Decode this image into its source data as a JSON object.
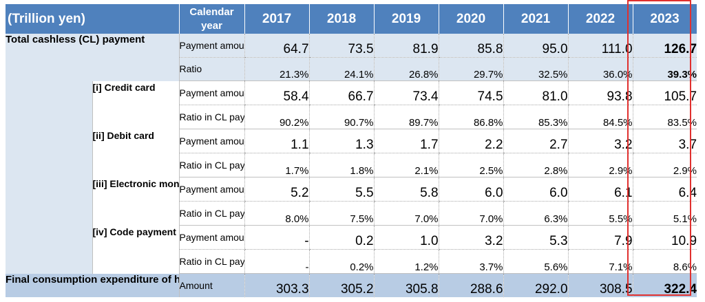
{
  "header": {
    "unit": "(Trillion yen)",
    "calendar_year": "Calendar year",
    "years": [
      "2017",
      "2018",
      "2019",
      "2020",
      "2021",
      "2022",
      "2023"
    ]
  },
  "total": {
    "label": "Total cashless (CL) payment",
    "amount_label": "Payment amount",
    "ratio_label": "Ratio",
    "amount": [
      "64.7",
      "73.5",
      "81.9",
      "85.8",
      "95.0",
      "111.0",
      "126.7"
    ],
    "ratio": [
      "21.3%",
      "24.1%",
      "26.8%",
      "29.7%",
      "32.5%",
      "36.0%",
      "39.3%"
    ]
  },
  "credit": {
    "label": "[i] Credit card",
    "amount_label": "Payment amount",
    "ratio_label": "Ratio in CL payment",
    "amount": [
      "58.4",
      "66.7",
      "73.4",
      "74.5",
      "81.0",
      "93.8",
      "105.7"
    ],
    "ratio": [
      "90.2%",
      "90.7%",
      "89.7%",
      "86.8%",
      "85.3%",
      "84.5%",
      "83.5%"
    ]
  },
  "debit": {
    "label": "[ii] Debit card",
    "amount_label": "Payment amount",
    "ratio_label": "Ratio in CL payment",
    "amount": [
      "1.1",
      "1.3",
      "1.7",
      "2.2",
      "2.7",
      "3.2",
      "3.7"
    ],
    "ratio": [
      "1.7%",
      "1.8%",
      "2.1%",
      "2.5%",
      "2.8%",
      "2.9%",
      "2.9%"
    ]
  },
  "emoney": {
    "label": "[iii] Electronic money",
    "amount_label": "Payment amount",
    "ratio_label": "Ratio in CL payment",
    "amount": [
      "5.2",
      "5.5",
      "5.8",
      "6.0",
      "6.0",
      "6.1",
      "6.4"
    ],
    "ratio": [
      "8.0%",
      "7.5%",
      "7.0%",
      "7.0%",
      "6.3%",
      "5.5%",
      "5.1%"
    ]
  },
  "code": {
    "label": "[iv] Code payment",
    "amount_label": "Payment amount",
    "ratio_label": "Ratio in CL payment",
    "amount": [
      "-",
      "0.2",
      "1.0",
      "3.2",
      "5.3",
      "7.9",
      "10.9"
    ],
    "ratio": [
      "-",
      "0.2%",
      "1.2%",
      "3.7%",
      "5.6%",
      "7.1%",
      "8.6%"
    ]
  },
  "final": {
    "label": "Final consumption expenditure of households",
    "amount_label": "Amount",
    "amount": [
      "303.3",
      "305.2",
      "305.8",
      "288.6",
      "292.0",
      "308.5",
      "322.4"
    ]
  }
}
